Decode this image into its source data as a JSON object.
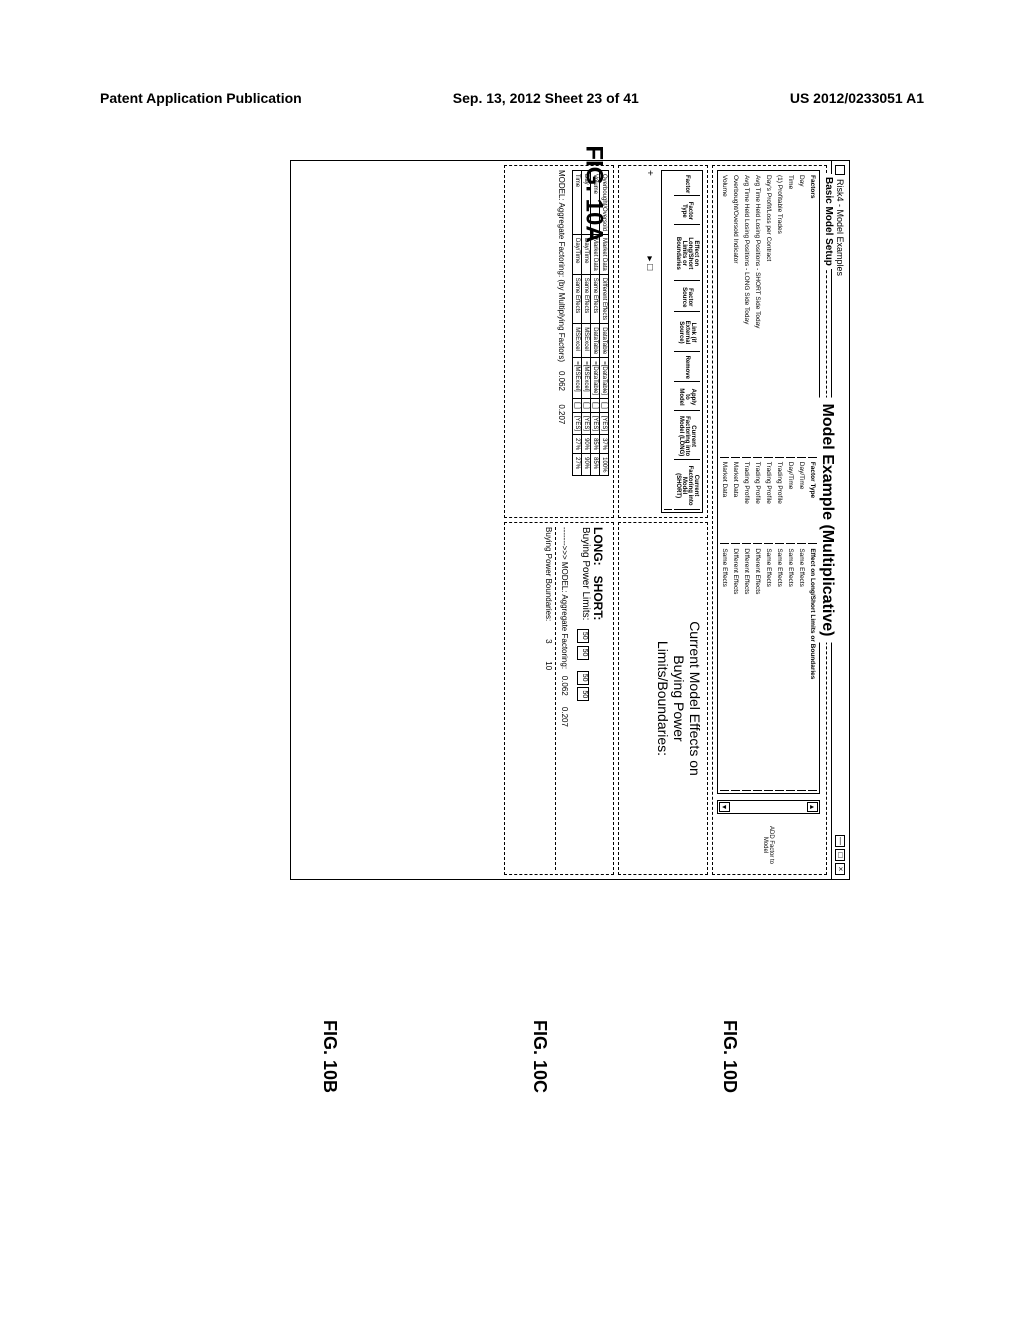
{
  "page_header": {
    "left": "Patent Application Publication",
    "center": "Sep. 13, 2012  Sheet 23 of 41",
    "right": "US 2012/0233051 A1"
  },
  "figure_main_title": "FIG. 10A",
  "sub_figures": {
    "b": "FIG. 10B",
    "c": "FIG. 10C",
    "d": "FIG. 10D"
  },
  "window": {
    "title": "Risk4 - Model Examples",
    "controls": {
      "min": "—",
      "max": "□",
      "close": "×"
    }
  },
  "basic_model": {
    "group_title": "Basic Model Setup",
    "factors_header": {
      "col1": "Factors",
      "col2": "Factor Type",
      "col3": "Effect on Long/Short Limits or Boundaries",
      "col4": ""
    },
    "factors": [
      {
        "f": "Day",
        "type": "Day/Time",
        "effect": "Same Effects"
      },
      {
        "f": "Time",
        "type": "Day/Time",
        "effect": "Same Effects"
      },
      {
        "f": "(1) Profitable Trades",
        "type": "Trading Profile",
        "effect": "Same Effects"
      },
      {
        "f": "Day's Profit/Loss per Contract",
        "type": "Trading Profile",
        "effect": "Same Effects"
      },
      {
        "f": "Avg Time Held Losing Positions - SHORT Side Today",
        "type": "Trading Profile",
        "effect": "Different Effects"
      },
      {
        "f": "Avg Time Held Losing Positions - LONG Side Today",
        "type": "Trading Profile",
        "effect": "Different Effects"
      },
      {
        "f": "Overbought/Oversold Indicator",
        "type": "Market Data",
        "effect": "Different Effects"
      },
      {
        "f": "Volume",
        "type": "Market Data",
        "effect": "Same Effects"
      }
    ],
    "add_btn": "ADD Factor to Model"
  },
  "model_example": {
    "title": "Model Example (Multiplicative)"
  },
  "mid_section": {
    "left_headers": [
      "Factor",
      "Factor Type",
      "Effect on Long/Short Limits or Boundaries",
      "Factor Source",
      "Link (if External Source)",
      "Remove",
      "Apply to Model",
      "Current Factoring into Model (LONG)",
      "Current Factoring into Model (SHORT)"
    ],
    "right_text_l1": "Current Model Effects on",
    "right_text_l2": "Buying Power",
    "right_text_l3": "Limits/Boundaries:"
  },
  "bottom_section": {
    "left_rows": [
      {
        "name": "Overbought/Oversold",
        "ftype": "Market Data",
        "effect": "Different Effects",
        "src": "DataTable",
        "link": "=[DataTable]",
        "rm": "[_]",
        "apply": "[YES]",
        "long": "37%",
        "short": "100%"
      },
      {
        "name": "Volume",
        "ftype": "Market Data",
        "effect": "Same Effects",
        "src": "DataTable",
        "link": "=[DataTable]",
        "rm": "[_]",
        "apply": "[YES]",
        "long": "85%",
        "short": "85%"
      },
      {
        "name": "Day",
        "ftype": "Day/Time",
        "effect": "Same Effects",
        "src": "MSExcel",
        "link": "=[MSExcel]",
        "rm": "[_]",
        "apply": "[YES]",
        "long": "90%",
        "short": "90%"
      },
      {
        "name": "Time",
        "ftype": "Day/Time",
        "effect": "Same Effects",
        "src": "MSExcel",
        "link": "=[MSExcel]",
        "rm": "[_]",
        "apply": "[YES]",
        "long": "27%",
        "short": "27%"
      }
    ],
    "agg_label": "MODEL: Aggregate Factoring: (by Multiplying Factors)",
    "agg_long": "0.062",
    "agg_short": "0.207",
    "model_agg_arrow": "------->>> MODEL: Aggregate Factoring:",
    "bp_boundaries": "Buying Power Boundaries:",
    "right": {
      "bp_limits_label": "Buying Power Limits:",
      "long_label": "LONG:",
      "short_label": "SHORT:",
      "long_box1": "50",
      "long_box2": "50",
      "short_box1": "50",
      "short_box2": "50",
      "long_val": "0.062",
      "short_val": "0.207",
      "long_b": "3",
      "short_b": "10"
    }
  }
}
